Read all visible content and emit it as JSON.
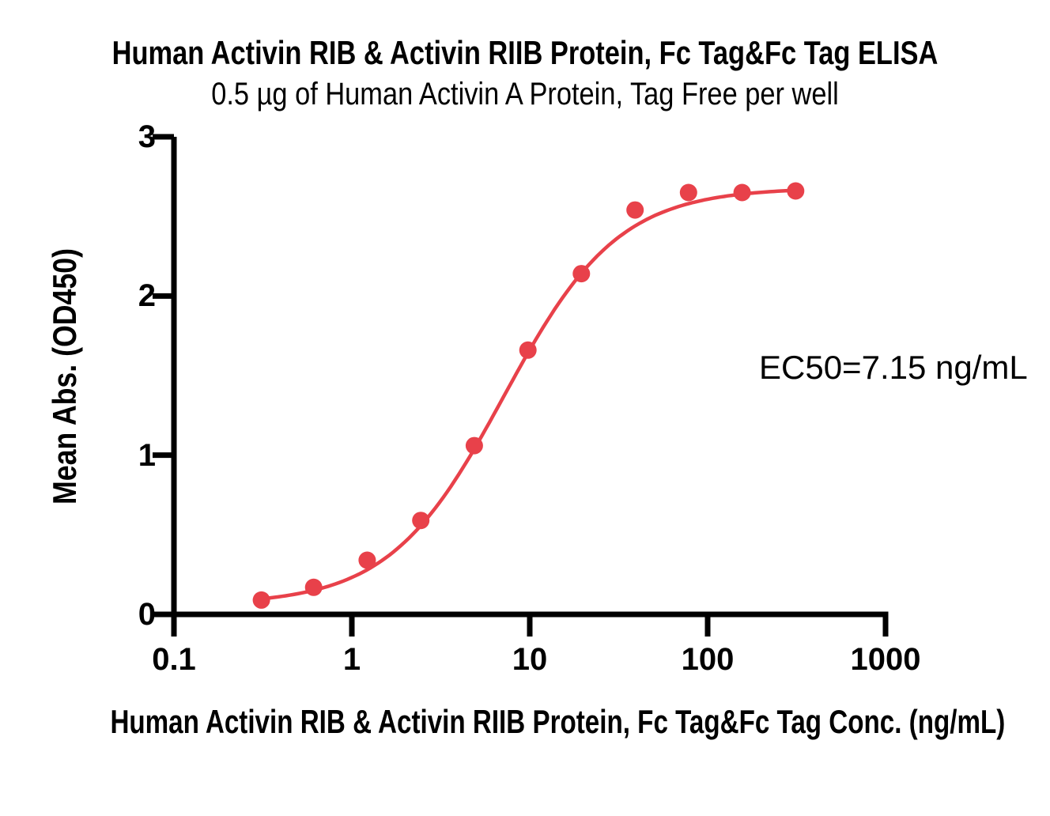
{
  "chart_data": {
    "type": "scatter",
    "title": "Human Activin RIB & Activin RIIB Protein, Fc Tag&Fc Tag ELISA",
    "subtitle": "0.5 µg of Human Activin A Protein, Tag Free per well",
    "xlabel": "Human Activin RIB & Activin RIIB Protein, Fc Tag&Fc Tag Conc. (ng/mL)",
    "ylabel": "Mean Abs. (OD450)",
    "annotation": "EC50=7.15 ng/mL",
    "x_scale": "log10",
    "xlim": [
      0.1,
      1000
    ],
    "ylim": [
      0,
      3
    ],
    "x_ticks": [
      0.1,
      1,
      10,
      100,
      1000
    ],
    "x_tick_labels": [
      "0.1",
      "1",
      "10",
      "100",
      "1000"
    ],
    "y_ticks": [
      0,
      1,
      2,
      3
    ],
    "y_tick_labels": [
      "0",
      "1",
      "2",
      "3"
    ],
    "grid": false,
    "legend": "none",
    "series": [
      {
        "x": [
          0.31,
          0.61,
          1.22,
          2.44,
          4.88,
          9.77,
          19.5,
          39.1,
          78.1,
          156.3,
          312.5
        ],
        "y": [
          0.09,
          0.17,
          0.34,
          0.59,
          1.06,
          1.66,
          2.14,
          2.54,
          2.65,
          2.65,
          2.66
        ]
      }
    ],
    "fit_curve": {
      "model": "4PL",
      "bottom": 0.06,
      "top": 2.68,
      "ec50": 7.15,
      "hill": 1.35,
      "x_start": 0.3,
      "x_end": 318
    },
    "colors": {
      "points": "#E8414A",
      "curve": "#E8414A",
      "axis": "#000000",
      "text": "#000000",
      "background": "#FFFFFF"
    }
  }
}
